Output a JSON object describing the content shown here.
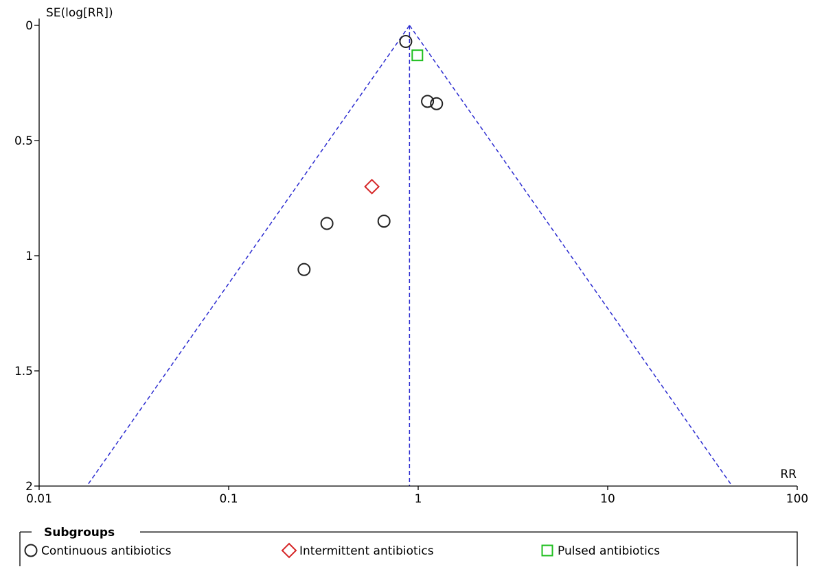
{
  "chart_data": {
    "type": "scatter",
    "subtype": "funnel plot",
    "x_axis": {
      "label": "RR",
      "scale": "log",
      "range": [
        0.01,
        100
      ],
      "ticks": [
        0.01,
        0.1,
        1,
        10,
        100
      ],
      "tick_labels": [
        "0.01",
        "0.1",
        "1",
        "10",
        "100"
      ]
    },
    "y_axis": {
      "label": "SE(log[RR])",
      "reversed": true,
      "range": [
        0,
        2
      ],
      "ticks": [
        0,
        0.5,
        1,
        1.5,
        2
      ],
      "tick_labels": [
        "0",
        "0.5",
        "1",
        "1.5",
        "2"
      ]
    },
    "pooled_estimate_rr": 0.9,
    "funnel_limits": "95% pseudo-confidence limits",
    "line_color": "#2b2bd0",
    "grid": false,
    "legend": {
      "title": "Subgroups",
      "placement": "bottom"
    },
    "series": [
      {
        "name": "Continuous antibiotics",
        "marker": "circle",
        "color": "#222222",
        "points": [
          {
            "rr": 0.86,
            "se": 0.07
          },
          {
            "rr": 1.12,
            "se": 0.33
          },
          {
            "rr": 1.25,
            "se": 0.34
          },
          {
            "rr": 0.66,
            "se": 0.85
          },
          {
            "rr": 0.33,
            "se": 0.86
          },
          {
            "rr": 0.25,
            "se": 1.06
          }
        ]
      },
      {
        "name": "Intermittent antibiotics",
        "marker": "diamond",
        "color": "#d62728",
        "points": [
          {
            "rr": 0.57,
            "se": 0.7
          }
        ]
      },
      {
        "name": "Pulsed antibiotics",
        "marker": "square",
        "color": "#1fbf1f",
        "points": [
          {
            "rr": 0.99,
            "se": 0.13
          }
        ]
      }
    ]
  }
}
